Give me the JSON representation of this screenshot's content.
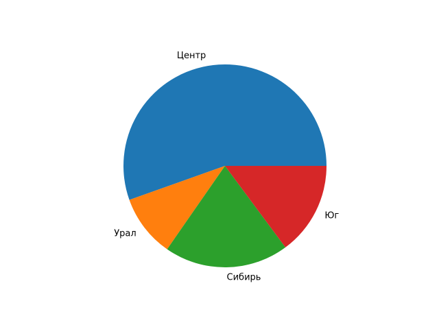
{
  "chart_data": {
    "type": "pie",
    "categories": [
      "Центр",
      "Урал",
      "Сибирь",
      "Юг"
    ],
    "values": [
      56,
      10,
      20,
      15
    ],
    "colors": [
      "#1f77b4",
      "#ff7f0e",
      "#2ca02c",
      "#d62728"
    ],
    "start_angle": 0,
    "direction": "counterclockwise",
    "title": "",
    "legend": "none"
  }
}
